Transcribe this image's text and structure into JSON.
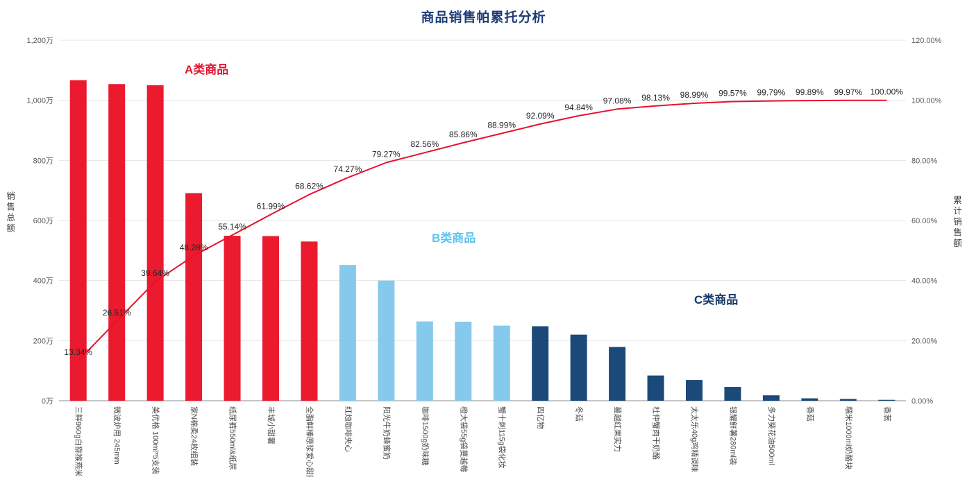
{
  "title": "商品销售帕累托分析",
  "annotations": [
    {
      "label": "A类商品",
      "color": "#e8112d"
    },
    {
      "label": "B类商品",
      "color": "#5fc3ee"
    },
    {
      "label": "C类商品",
      "color": "#17386b"
    }
  ],
  "chart_data": {
    "type": "bar+line (pareto)",
    "title": "商品销售帕累托分析",
    "left_axis": {
      "title": "销售总额",
      "max": 1200,
      "unit": "万",
      "ticks": [
        {
          "label": "0万",
          "value": 0
        },
        {
          "label": "200万",
          "value": 200
        },
        {
          "label": "400万",
          "value": 400
        },
        {
          "label": "600万",
          "value": 600
        },
        {
          "label": "800万",
          "value": 800
        },
        {
          "label": "1,000万",
          "value": 1000
        },
        {
          "label": "1,200万",
          "value": 1200
        }
      ]
    },
    "right_axis": {
      "title": "累计销售额",
      "max": 120,
      "unit": "%",
      "ticks": [
        {
          "label": "0.00%",
          "value": 0
        },
        {
          "label": "20.00%",
          "value": 20
        },
        {
          "label": "40.00%",
          "value": 40
        },
        {
          "label": "60.00%",
          "value": 60
        },
        {
          "label": "80.00%",
          "value": 80
        },
        {
          "label": "100.00%",
          "value": 100
        },
        {
          "label": "120.00%",
          "value": 120
        }
      ]
    },
    "categories": [
      "三鲜960g白猕猴燕米",
      "微波炉用 245mm",
      "美优格 100ml*5支装",
      "家N棉柔24枚组装",
      "纸尿裤550ml&纸尿",
      "丰城小甜薯",
      "全脂鲜榛原浆爱心甜圈",
      "红烛咖啡夹心",
      "阳光牛奶蜂蜜奶",
      "咖啡1500g奶味糖",
      "橙大袋55g袋蔓越莓",
      "蟹十刺115g袋化妆",
      "四亿物",
      "冬菇",
      "蔓越红果实力",
      "杜仲蟹肉干奶酪",
      "太太乐40g鸡精调味",
      "银耀鲜薯280ml装",
      "多力葵花油500ml",
      "香菇",
      "糯米1000ml奶酪块",
      "香葱"
    ],
    "bars": {
      "name": "销售总额",
      "unit": "万",
      "values": [
        1067,
        1054,
        1050,
        691,
        549,
        548,
        530,
        452,
        400,
        264,
        263,
        250,
        248,
        220,
        179,
        84,
        69,
        46,
        18,
        8,
        6,
        3
      ],
      "classes": [
        "A",
        "A",
        "A",
        "A",
        "A",
        "A",
        "A",
        "B",
        "B",
        "B",
        "B",
        "B",
        "C",
        "C",
        "C",
        "C",
        "C",
        "C",
        "C",
        "C",
        "C",
        "C"
      ]
    },
    "class_colors": {
      "A": "#eb1a2e",
      "B": "#85c9ec",
      "C": "#1b4979"
    },
    "line": {
      "name": "累计销售额",
      "unit": "%",
      "color": "#e8112d",
      "values": [
        13.34,
        26.51,
        39.64,
        48.28,
        55.14,
        61.99,
        68.62,
        74.27,
        79.27,
        82.56,
        85.86,
        88.99,
        92.09,
        94.84,
        97.08,
        98.13,
        98.99,
        99.57,
        99.79,
        99.89,
        99.97,
        100.0
      ],
      "labels": [
        "13.34%",
        "26.51%",
        "39.64%",
        "48.28%",
        "55.14%",
        "61.99%",
        "68.62%",
        "74.27%",
        "79.27%",
        "82.56%",
        "85.86%",
        "88.99%",
        "92.09%",
        "94.84%",
        "97.08%",
        "98.13%",
        "98.99%",
        "99.57%",
        "99.79%",
        "99.89%",
        "99.97%",
        "100.00%"
      ],
      "legend_position": "none",
      "grid": "horizontal"
    }
  }
}
